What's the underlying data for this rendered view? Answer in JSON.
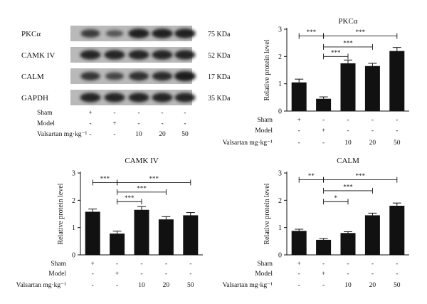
{
  "blot": {
    "rows": [
      {
        "protein": "PKCα",
        "mass": "75 KDa",
        "intensities": [
          0.7,
          0.45,
          0.95,
          0.95,
          0.95
        ]
      },
      {
        "protein": "CAMK IV",
        "mass": "52 KDa",
        "intensities": [
          0.9,
          0.9,
          0.9,
          0.9,
          0.9
        ]
      },
      {
        "protein": "CALM",
        "mass": "17 KDa",
        "intensities": [
          0.75,
          0.6,
          0.8,
          0.85,
          1.0
        ]
      },
      {
        "protein": "GAPDH",
        "mass": "35 KDa",
        "intensities": [
          0.9,
          0.9,
          0.9,
          0.9,
          0.9
        ]
      }
    ],
    "conditions": [
      {
        "label": "Sham",
        "values": [
          "+",
          "-",
          "-",
          "-",
          "-"
        ]
      },
      {
        "label": "Model",
        "values": [
          "-",
          "+",
          "-",
          "-",
          "-"
        ]
      },
      {
        "label": "Valsartan mg·kg⁻¹",
        "values": [
          "-",
          "-",
          "10",
          "20",
          "50"
        ]
      }
    ]
  },
  "chart_data": [
    {
      "type": "bar",
      "title": "PKCα",
      "ylabel": "Relative protein level",
      "ylim": [
        0,
        3
      ],
      "yticks": [
        0,
        1,
        2,
        3
      ],
      "categories": [
        "Sham",
        "Model",
        "Valsartan 10",
        "Valsartan 20",
        "Valsartan 50"
      ],
      "values": [
        1.05,
        0.45,
        1.75,
        1.65,
        2.2
      ],
      "errors": [
        0.12,
        0.07,
        0.12,
        0.1,
        0.13
      ],
      "significance": [
        {
          "from": 0,
          "to": 1,
          "label": "***",
          "y": 2.75
        },
        {
          "from": 1,
          "to": 4,
          "label": "***",
          "y": 2.75
        },
        {
          "from": 1,
          "to": 3,
          "label": "***",
          "y": 2.35
        },
        {
          "from": 1,
          "to": 2,
          "label": "***",
          "y": 2.0
        }
      ],
      "conditions": [
        {
          "label": "Sham",
          "values": [
            "+",
            "-",
            "-",
            "-",
            "-"
          ]
        },
        {
          "label": "Model",
          "values": [
            "-",
            "+",
            "-",
            "-",
            "-"
          ]
        },
        {
          "label": "Valsartan mg·kg⁻¹",
          "values": [
            "-",
            "-",
            "10",
            "20",
            "50"
          ]
        }
      ]
    },
    {
      "type": "bar",
      "title": "CAMK IV",
      "ylabel": "Relative protein level",
      "ylim": [
        0,
        3
      ],
      "yticks": [
        0,
        1,
        2,
        3
      ],
      "categories": [
        "Sham",
        "Model",
        "Valsartan 10",
        "Valsartan 20",
        "Valsartan 50"
      ],
      "values": [
        1.58,
        0.78,
        1.65,
        1.3,
        1.45
      ],
      "errors": [
        0.1,
        0.09,
        0.12,
        0.1,
        0.1
      ],
      "significance": [
        {
          "from": 0,
          "to": 1,
          "label": "***",
          "y": 2.65
        },
        {
          "from": 1,
          "to": 4,
          "label": "***",
          "y": 2.65
        },
        {
          "from": 1,
          "to": 3,
          "label": "***",
          "y": 2.3
        },
        {
          "from": 1,
          "to": 2,
          "label": "***",
          "y": 1.95
        }
      ],
      "conditions": [
        {
          "label": "Sham",
          "values": [
            "+",
            "-",
            "-",
            "-",
            "-"
          ]
        },
        {
          "label": "Model",
          "values": [
            "-",
            "+",
            "-",
            "-",
            "-"
          ]
        },
        {
          "label": "Valsartan mg·kg⁻¹",
          "values": [
            "-",
            "-",
            "10",
            "20",
            "50"
          ]
        }
      ]
    },
    {
      "type": "bar",
      "title": "CALM",
      "ylabel": "Relative protein level",
      "ylim": [
        0,
        3
      ],
      "yticks": [
        0,
        1,
        2,
        3
      ],
      "categories": [
        "Sham",
        "Model",
        "Valsartan 10",
        "Valsartan 20",
        "Valsartan 50"
      ],
      "values": [
        0.88,
        0.55,
        0.8,
        1.45,
        1.8
      ],
      "errors": [
        0.06,
        0.05,
        0.05,
        0.08,
        0.1
      ],
      "significance": [
        {
          "from": 0,
          "to": 1,
          "label": "**",
          "y": 2.75
        },
        {
          "from": 1,
          "to": 4,
          "label": "***",
          "y": 2.75
        },
        {
          "from": 1,
          "to": 3,
          "label": "***",
          "y": 2.35
        },
        {
          "from": 1,
          "to": 2,
          "label": "*",
          "y": 1.95
        }
      ],
      "conditions": [
        {
          "label": "Sham",
          "values": [
            "+",
            "-",
            "-",
            "-",
            "-"
          ]
        },
        {
          "label": "Model",
          "values": [
            "-",
            "+",
            "-",
            "-",
            "-"
          ]
        },
        {
          "label": "Valsartan mg·kg⁻¹",
          "values": [
            "-",
            "-",
            "10",
            "20",
            "50"
          ]
        }
      ]
    }
  ]
}
